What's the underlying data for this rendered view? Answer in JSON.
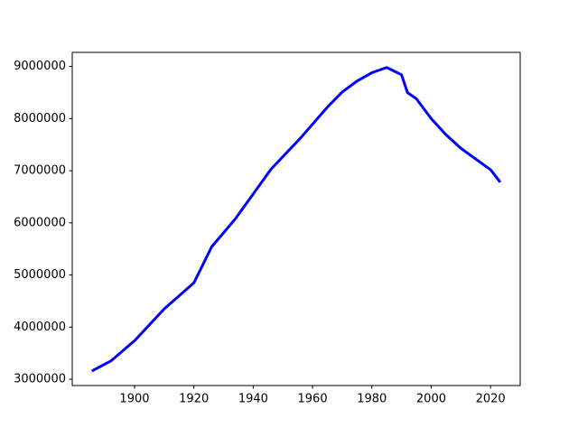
{
  "chart_data": {
    "type": "line",
    "x": [
      1886,
      1892,
      1900,
      1910,
      1920,
      1926,
      1934,
      1946,
      1956,
      1965,
      1970,
      1975,
      1980,
      1985,
      1990,
      1992,
      1995,
      2000,
      2005,
      2010,
      2020,
      2023
    ],
    "series": [
      {
        "color": "#0000ff",
        "values": [
          3170000,
          3350000,
          3740000,
          4350000,
          4850000,
          5540000,
          6080000,
          7030000,
          7630000,
          8220000,
          8510000,
          8720000,
          8880000,
          8980000,
          8840000,
          8500000,
          8380000,
          8000000,
          7690000,
          7430000,
          7020000,
          6800000
        ]
      }
    ],
    "xlim": [
      1879,
      2030
    ],
    "xticks": [
      1900,
      1920,
      1940,
      1960,
      1980,
      2000,
      2020
    ],
    "ylim": [
      2880000,
      9270000
    ],
    "yticks": [
      3000000,
      4000000,
      5000000,
      6000000,
      7000000,
      8000000,
      9000000
    ]
  }
}
